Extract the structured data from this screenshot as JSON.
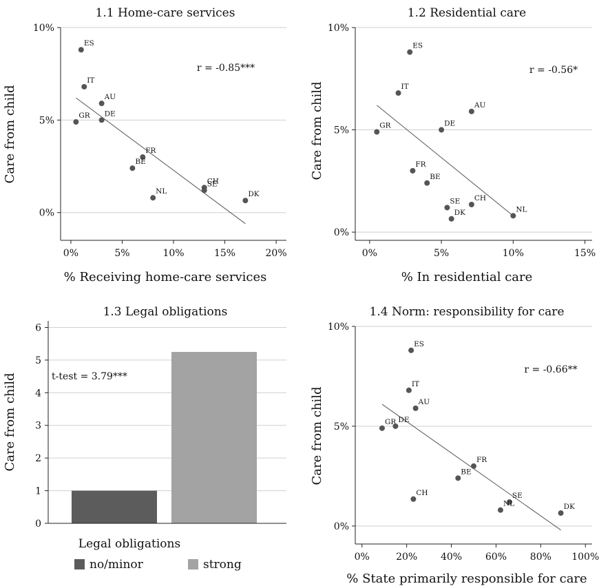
{
  "chart_data": [
    {
      "type": "scatter",
      "title": "1.1  Home-care services",
      "xlabel": "% Receiving home-care services",
      "ylabel": "Care from child",
      "xlim": [
        0,
        20
      ],
      "ylim": [
        0,
        10
      ],
      "xticks": [
        "0%",
        "5%",
        "10%",
        "15%",
        "20%"
      ],
      "yticks": [
        "0%",
        "5%",
        "10%"
      ],
      "grid": "horizontal",
      "annotation": "r = -0.85***",
      "points": [
        {
          "label": "ES",
          "x": 1.0,
          "y": 8.8
        },
        {
          "label": "IT",
          "x": 1.3,
          "y": 6.8
        },
        {
          "label": "AU",
          "x": 3.0,
          "y": 5.9
        },
        {
          "label": "DE",
          "x": 3.0,
          "y": 5.0
        },
        {
          "label": "GR",
          "x": 0.5,
          "y": 4.9
        },
        {
          "label": "FR",
          "x": 7.0,
          "y": 3.0
        },
        {
          "label": "BE",
          "x": 6.0,
          "y": 2.4
        },
        {
          "label": "NL",
          "x": 8.0,
          "y": 0.8
        },
        {
          "label": "CH",
          "x": 13.0,
          "y": 1.35
        },
        {
          "label": "SE",
          "x": 13.0,
          "y": 1.2
        },
        {
          "label": "DK",
          "x": 17.0,
          "y": 0.65
        }
      ],
      "fit": [
        [
          0.5,
          6.2
        ],
        [
          17.0,
          -0.6
        ]
      ]
    },
    {
      "type": "scatter",
      "title": "1.2  Residential care",
      "xlabel": "% In residential care",
      "ylabel": "Care from child",
      "xlim": [
        0,
        15
      ],
      "ylim": [
        0,
        10
      ],
      "xticks": [
        "0%",
        "5%",
        "10%",
        "15%"
      ],
      "yticks": [
        "0%",
        "5%",
        "10%"
      ],
      "grid": "horizontal",
      "annotation": "r = -0.56*",
      "points": [
        {
          "label": "ES",
          "x": 2.8,
          "y": 8.8
        },
        {
          "label": "IT",
          "x": 2.0,
          "y": 6.8
        },
        {
          "label": "AU",
          "x": 7.1,
          "y": 5.9
        },
        {
          "label": "DE",
          "x": 5.0,
          "y": 5.0
        },
        {
          "label": "GR",
          "x": 0.5,
          "y": 4.9
        },
        {
          "label": "FR",
          "x": 3.0,
          "y": 3.0
        },
        {
          "label": "BE",
          "x": 4.0,
          "y": 2.4
        },
        {
          "label": "SE",
          "x": 5.4,
          "y": 1.2
        },
        {
          "label": "CH",
          "x": 7.1,
          "y": 1.35
        },
        {
          "label": "DK",
          "x": 5.7,
          "y": 0.65
        },
        {
          "label": "NL",
          "x": 10.0,
          "y": 0.8
        }
      ],
      "fit": [
        [
          0.5,
          6.2
        ],
        [
          10.0,
          0.8
        ]
      ]
    },
    {
      "type": "bar",
      "title": "1.3  Legal obligations",
      "ylabel": "Care from child",
      "ylim": [
        0,
        6
      ],
      "yticks": [
        "0",
        "1",
        "2",
        "3",
        "4",
        "5",
        "6"
      ],
      "grid": "horizontal",
      "annotation": "t-test = 3.79***",
      "legend_title": "Legal obligations",
      "legend_position": "bottom",
      "series": [
        {
          "name": "no/minor",
          "values": [
            1.0
          ],
          "color": "#5c5c5c"
        },
        {
          "name": "strong",
          "values": [
            5.25
          ],
          "color": "#a3a3a3"
        }
      ]
    },
    {
      "type": "scatter",
      "title": "1.4  Norm: responsibility for care",
      "xlabel": "% State primarily responsible for care",
      "ylabel": "Care from child",
      "xlim": [
        0,
        100
      ],
      "ylim": [
        0,
        10
      ],
      "xticks": [
        "0%",
        "20%",
        "40%",
        "60%",
        "80%",
        "100%"
      ],
      "yticks": [
        "0%",
        "5%",
        "10%"
      ],
      "grid": "horizontal",
      "annotation": "r = -0.66**",
      "points": [
        {
          "label": "ES",
          "x": 22,
          "y": 8.8
        },
        {
          "label": "IT",
          "x": 21,
          "y": 6.8
        },
        {
          "label": "AU",
          "x": 24,
          "y": 5.9
        },
        {
          "label": "GR",
          "x": 9,
          "y": 4.9
        },
        {
          "label": "DE",
          "x": 15,
          "y": 5.0
        },
        {
          "label": "FR",
          "x": 50,
          "y": 3.0
        },
        {
          "label": "BE",
          "x": 43,
          "y": 2.4
        },
        {
          "label": "CH",
          "x": 23,
          "y": 1.35
        },
        {
          "label": "SE",
          "x": 66,
          "y": 1.2
        },
        {
          "label": "NL",
          "x": 62,
          "y": 0.8
        },
        {
          "label": "DK",
          "x": 89,
          "y": 0.65
        }
      ],
      "fit": [
        [
          9,
          6.1
        ],
        [
          89,
          -0.2
        ]
      ]
    }
  ]
}
